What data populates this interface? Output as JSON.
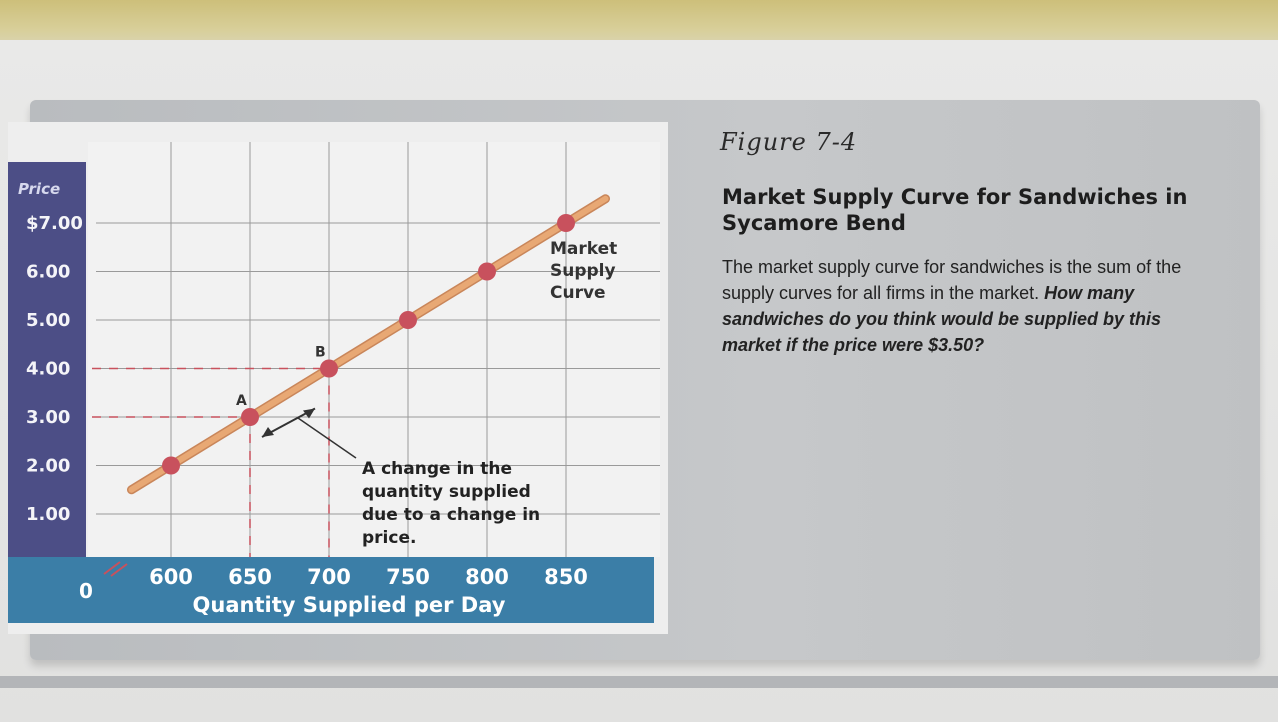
{
  "figure_label": "Figure 7-4",
  "caption": {
    "title": "Market Supply Curve for Sandwiches in Sycamore Bend",
    "body": "The market supply curve for sandwiches is the sum of the supply curves for all firms in the market.",
    "question": "How many sandwiches do you think would be supplied by this market if the price were $3.50?"
  },
  "colors": {
    "axis_band": "#3b7ea7",
    "y_axis_band": "#4c4e86",
    "curve": "#e8a874",
    "point": "#c8515d",
    "guide": "#c8515d",
    "grid": "#9a9a9a"
  },
  "chart_data": {
    "type": "line",
    "xlabel": "Quantity Supplied per Day",
    "ylabel": "Price",
    "x_ticks": [
      "600",
      "650",
      "700",
      "750",
      "800",
      "850"
    ],
    "y_ticks": [
      "$7.00",
      "6.00",
      "5.00",
      "4.00",
      "3.00",
      "2.00",
      "1.00"
    ],
    "origin_label": "0",
    "xlim": [
      575,
      875
    ],
    "ylim": [
      0.5,
      7.5
    ],
    "grid": true,
    "series": [
      {
        "name": "Market Supply Curve",
        "x": [
          600,
          650,
          700,
          750,
          800,
          850
        ],
        "y": [
          2,
          3,
          4,
          5,
          6,
          7
        ]
      }
    ],
    "curve_label": [
      "Market",
      "Supply",
      "Curve"
    ],
    "points_labeled": [
      {
        "label": "A",
        "x": 650,
        "y": 3
      },
      {
        "label": "B",
        "x": 700,
        "y": 4
      }
    ],
    "annotation": [
      "A change in the",
      "quantity supplied",
      "due to a change in",
      "price."
    ]
  }
}
